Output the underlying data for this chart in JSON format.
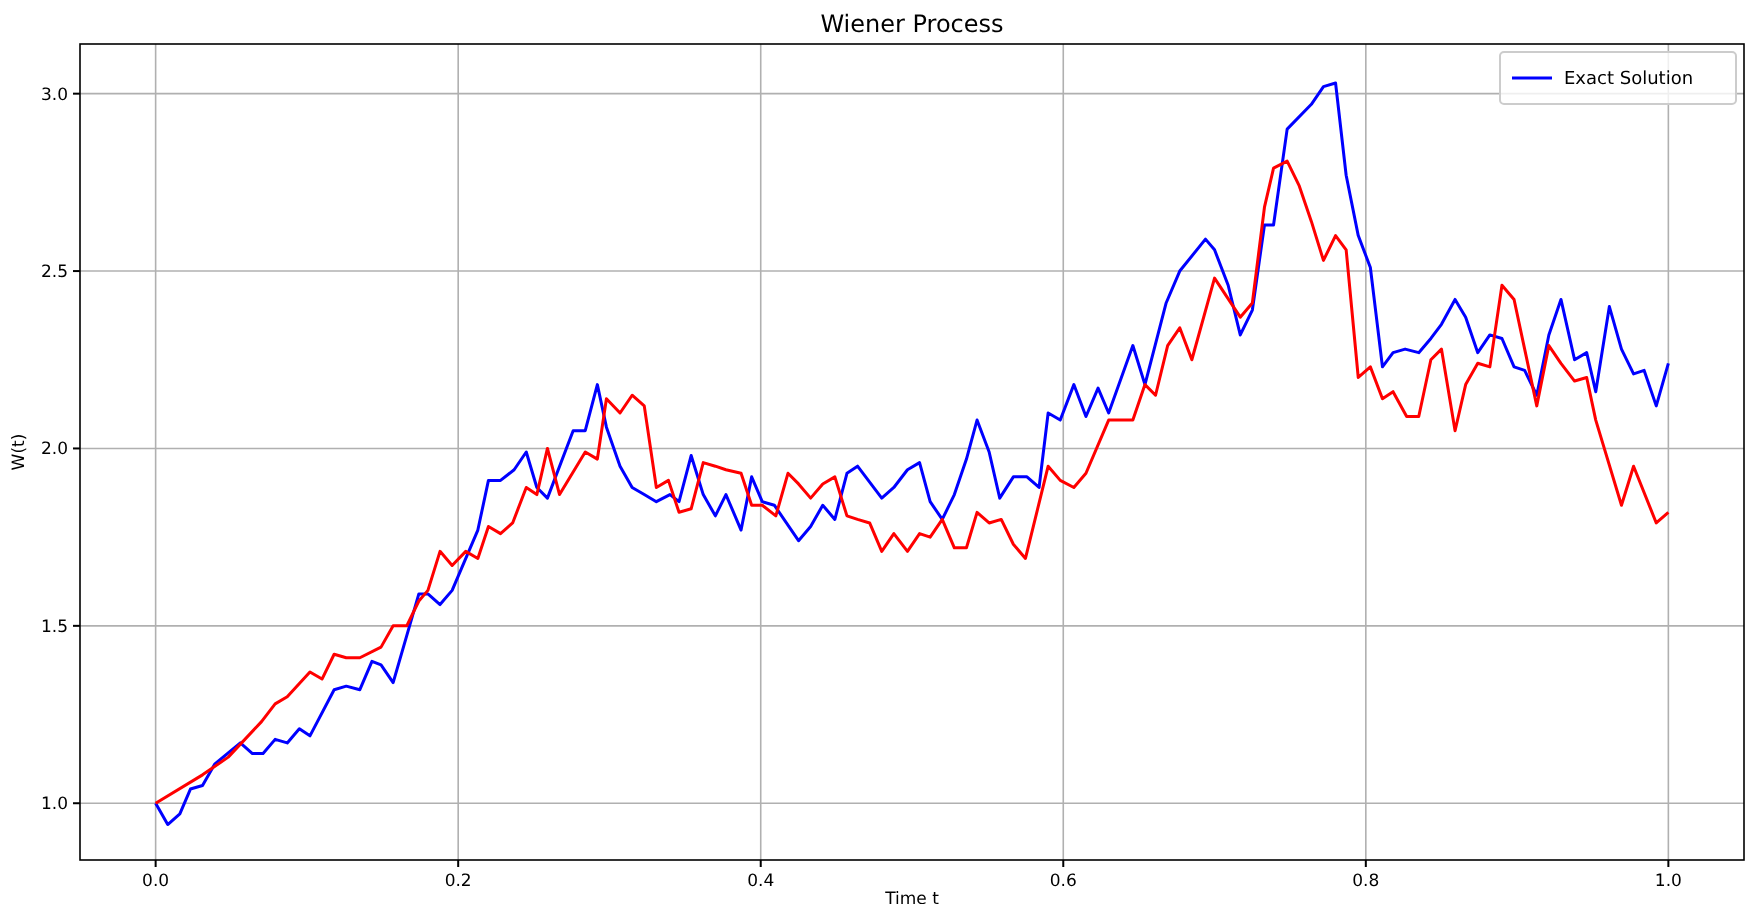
{
  "chart_data": {
    "type": "line",
    "title": "Wiener Process",
    "xlabel": "Time t",
    "ylabel": "W(t)",
    "xlim": [
      -0.05,
      1.05
    ],
    "ylim": [
      0.84,
      3.14
    ],
    "xticks": [
      {
        "value": 0,
        "label": "0.0"
      },
      0.2,
      0.4,
      0.6,
      0.8,
      {
        "value": 1,
        "label": "1.0"
      }
    ],
    "yticks": [
      {
        "value": 1,
        "label": "1.0"
      },
      1.5,
      {
        "value": 2,
        "label": "2.0"
      },
      2.5,
      {
        "value": 3,
        "label": "3.0"
      }
    ],
    "grid": true,
    "legend": "top right",
    "line_style": "solid",
    "series": [
      {
        "name": "Exact Solution",
        "color": "#0000ff",
        "x": [
          0,
          0.008,
          0.016,
          0.023,
          0.031,
          0.039,
          0.056,
          0.064,
          0.071,
          0.079,
          0.087,
          0.095,
          0.102,
          0.118,
          0.126,
          0.135,
          0.143,
          0.149,
          0.157,
          0.174,
          0.18,
          0.188,
          0.196,
          0.213,
          0.22,
          0.228,
          0.237,
          0.245,
          0.252,
          0.259,
          0.276,
          0.284,
          0.292,
          0.298,
          0.307,
          0.315,
          0.323,
          0.331,
          0.34,
          0.346,
          0.354,
          0.362,
          0.37,
          0.377,
          0.387,
          0.394,
          0.401,
          0.409,
          0.425,
          0.433,
          0.441,
          0.449,
          0.457,
          0.464,
          0.48,
          0.488,
          0.497,
          0.505,
          0.512,
          0.52,
          0.528,
          0.536,
          0.543,
          0.551,
          0.558,
          0.567,
          0.576,
          0.584,
          0.59,
          0.598,
          0.607,
          0.615,
          0.623,
          0.63,
          0.646,
          0.654,
          0.668,
          0.677,
          0.694,
          0.7,
          0.709,
          0.717,
          0.725,
          0.733,
          0.739,
          0.748,
          0.764,
          0.772,
          0.78,
          0.787,
          0.795,
          0.803,
          0.811,
          0.818,
          0.826,
          0.835,
          0.843,
          0.85,
          0.859,
          0.866,
          0.874,
          0.882,
          0.89,
          0.898,
          0.905,
          0.913,
          0.921,
          0.929,
          0.938,
          0.946,
          0.952,
          0.961,
          0.969,
          0.977,
          0.984,
          0.992,
          1.0
        ],
        "values": [
          1.0,
          0.94,
          0.97,
          1.04,
          1.05,
          1.11,
          1.17,
          1.14,
          1.14,
          1.18,
          1.17,
          1.21,
          1.19,
          1.32,
          1.33,
          1.32,
          1.4,
          1.39,
          1.34,
          1.59,
          1.59,
          1.56,
          1.6,
          1.77,
          1.91,
          1.91,
          1.94,
          1.99,
          1.89,
          1.86,
          2.05,
          2.05,
          2.18,
          2.06,
          1.95,
          1.89,
          1.87,
          1.85,
          1.87,
          1.85,
          1.98,
          1.87,
          1.81,
          1.87,
          1.77,
          1.92,
          1.85,
          1.84,
          1.74,
          1.78,
          1.84,
          1.8,
          1.93,
          1.95,
          1.86,
          1.89,
          1.94,
          1.96,
          1.85,
          1.8,
          1.87,
          1.97,
          2.08,
          1.99,
          1.86,
          1.92,
          1.92,
          1.89,
          2.1,
          2.08,
          2.18,
          2.09,
          2.17,
          2.1,
          2.29,
          2.18,
          2.41,
          2.5,
          2.59,
          2.56,
          2.46,
          2.32,
          2.39,
          2.63,
          2.63,
          2.9,
          2.97,
          3.02,
          3.03,
          2.77,
          2.6,
          2.51,
          2.23,
          2.27,
          2.28,
          2.27,
          2.31,
          2.35,
          2.42,
          2.37,
          2.27,
          2.32,
          2.31,
          2.23,
          2.22,
          2.15,
          2.32,
          2.42,
          2.25,
          2.27,
          2.16,
          2.4,
          2.28,
          2.21,
          2.22,
          2.12,
          2.24
        ]
      },
      {
        "color": "#ff0000",
        "x": [
          0,
          0.031,
          0.048,
          0.07,
          0.079,
          0.087,
          0.102,
          0.11,
          0.118,
          0.126,
          0.135,
          0.149,
          0.157,
          0.166,
          0.174,
          0.18,
          0.188,
          0.196,
          0.205,
          0.213,
          0.22,
          0.228,
          0.236,
          0.245,
          0.252,
          0.259,
          0.267,
          0.284,
          0.292,
          0.298,
          0.307,
          0.315,
          0.323,
          0.331,
          0.339,
          0.346,
          0.354,
          0.362,
          0.37,
          0.377,
          0.387,
          0.394,
          0.401,
          0.41,
          0.418,
          0.425,
          0.433,
          0.441,
          0.449,
          0.457,
          0.464,
          0.472,
          0.48,
          0.488,
          0.497,
          0.505,
          0.512,
          0.52,
          0.528,
          0.536,
          0.543,
          0.551,
          0.559,
          0.567,
          0.575,
          0.59,
          0.598,
          0.607,
          0.615,
          0.63,
          0.638,
          0.646,
          0.654,
          0.661,
          0.669,
          0.677,
          0.685,
          0.7,
          0.717,
          0.725,
          0.733,
          0.739,
          0.748,
          0.756,
          0.764,
          0.772,
          0.78,
          0.787,
          0.795,
          0.803,
          0.811,
          0.818,
          0.827,
          0.835,
          0.843,
          0.85,
          0.859,
          0.866,
          0.874,
          0.882,
          0.89,
          0.898,
          0.905,
          0.913,
          0.921,
          0.929,
          0.938,
          0.946,
          0.952,
          0.969,
          0.977,
          0.992,
          1.0
        ],
        "values": [
          1.0,
          1.08,
          1.13,
          1.23,
          1.28,
          1.3,
          1.37,
          1.35,
          1.42,
          1.41,
          1.41,
          1.44,
          1.5,
          1.5,
          1.57,
          1.6,
          1.71,
          1.67,
          1.71,
          1.69,
          1.78,
          1.76,
          1.79,
          1.89,
          1.87,
          2.0,
          1.87,
          1.99,
          1.97,
          2.14,
          2.1,
          2.15,
          2.12,
          1.89,
          1.91,
          1.82,
          1.83,
          1.96,
          1.95,
          1.94,
          1.93,
          1.84,
          1.84,
          1.81,
          1.93,
          1.9,
          1.86,
          1.9,
          1.92,
          1.81,
          1.8,
          1.79,
          1.71,
          1.76,
          1.71,
          1.76,
          1.75,
          1.8,
          1.72,
          1.72,
          1.82,
          1.79,
          1.8,
          1.73,
          1.69,
          1.95,
          1.91,
          1.89,
          1.93,
          2.08,
          2.08,
          2.08,
          2.18,
          2.15,
          2.29,
          2.34,
          2.25,
          2.48,
          2.37,
          2.41,
          2.68,
          2.79,
          2.81,
          2.74,
          2.64,
          2.53,
          2.6,
          2.56,
          2.2,
          2.23,
          2.14,
          2.16,
          2.09,
          2.09,
          2.25,
          2.28,
          2.05,
          2.18,
          2.24,
          2.23,
          2.46,
          2.42,
          2.28,
          2.12,
          2.29,
          2.24,
          2.19,
          2.2,
          2.08,
          1.84,
          1.95,
          1.79,
          1.82
        ]
      }
    ]
  }
}
